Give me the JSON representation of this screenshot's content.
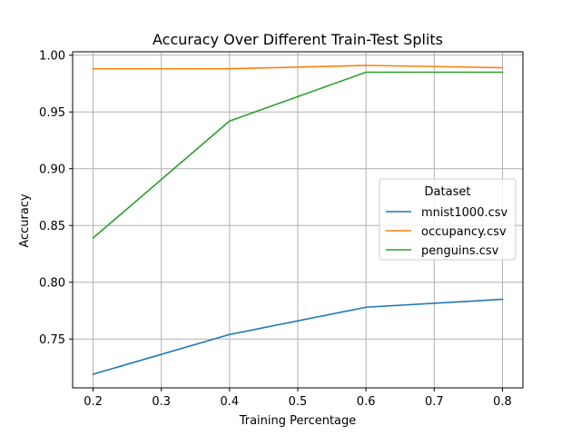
{
  "chart_data": {
    "type": "line",
    "title": "Accuracy Over Different Train-Test Splits",
    "xlabel": "Training Percentage",
    "ylabel": "Accuracy",
    "x": [
      0.2,
      0.4,
      0.6,
      0.8
    ],
    "xlim": [
      0.17,
      0.83
    ],
    "ylim": [
      0.707,
      1.003
    ],
    "xticks": [
      0.2,
      0.3,
      0.4,
      0.5,
      0.6,
      0.7,
      0.8
    ],
    "xtick_labels": [
      "0.2",
      "0.3",
      "0.4",
      "0.5",
      "0.6",
      "0.7",
      "0.8"
    ],
    "yticks": [
      0.75,
      0.8,
      0.85,
      0.9,
      0.95,
      1.0
    ],
    "ytick_labels": [
      "0.75",
      "0.80",
      "0.85",
      "0.90",
      "0.95",
      "1.00"
    ],
    "grid": true,
    "legend": {
      "title": "Dataset",
      "placement": "center-right"
    },
    "series": [
      {
        "name": "mnist1000.csv",
        "color": "#1f77b4",
        "values": [
          0.719,
          0.754,
          0.778,
          0.785
        ]
      },
      {
        "name": "occupancy.csv",
        "color": "#ff7f0e",
        "values": [
          0.988,
          0.988,
          0.991,
          0.989
        ]
      },
      {
        "name": "penguins.csv",
        "color": "#2ca02c",
        "values": [
          0.839,
          0.942,
          0.985,
          0.985
        ]
      }
    ]
  }
}
